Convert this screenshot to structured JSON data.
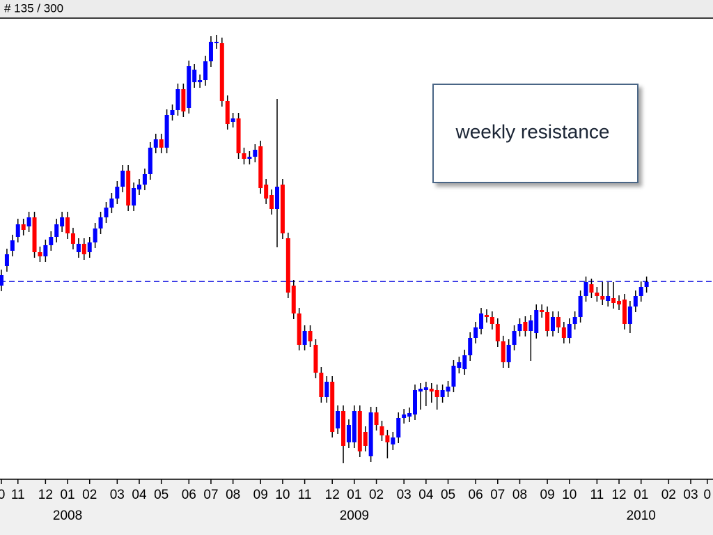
{
  "chart_data": {
    "type": "candlestick",
    "title": "# 135 / 300",
    "annotation": "weekly resistance",
    "up_color": "#0000ff",
    "down_color": "#ff0000",
    "wick_color": "#000000",
    "resistance": 284,
    "resistance_color": "#0000dd",
    "xlim": [
      0,
      129
    ],
    "ylim": [
      0,
      663
    ],
    "xticks": [
      {
        "value": 0,
        "label": "0"
      },
      {
        "value": 3,
        "label": "11"
      },
      {
        "value": 8,
        "label": "12"
      },
      {
        "value": 12,
        "label": "01"
      },
      {
        "value": 16,
        "label": "02"
      },
      {
        "value": 21,
        "label": "03"
      },
      {
        "value": 25,
        "label": "04"
      },
      {
        "value": 29,
        "label": "05"
      },
      {
        "value": 34,
        "label": "06"
      },
      {
        "value": 38,
        "label": "07"
      },
      {
        "value": 42,
        "label": "08"
      },
      {
        "value": 47,
        "label": "09"
      },
      {
        "value": 51,
        "label": "10"
      },
      {
        "value": 55,
        "label": "11"
      },
      {
        "value": 60,
        "label": "12"
      },
      {
        "value": 64,
        "label": "01"
      },
      {
        "value": 68,
        "label": "02"
      },
      {
        "value": 73,
        "label": "03"
      },
      {
        "value": 77,
        "label": "04"
      },
      {
        "value": 81,
        "label": "05"
      },
      {
        "value": 86,
        "label": "06"
      },
      {
        "value": 90,
        "label": "07"
      },
      {
        "value": 94,
        "label": "08"
      },
      {
        "value": 99,
        "label": "09"
      },
      {
        "value": 103,
        "label": "10"
      },
      {
        "value": 108,
        "label": "11"
      },
      {
        "value": 112,
        "label": "12"
      },
      {
        "value": 116,
        "label": "01"
      },
      {
        "value": 121,
        "label": "02"
      },
      {
        "value": 125,
        "label": "03"
      },
      {
        "value": 128,
        "label": "0"
      }
    ],
    "year_ticks": [
      {
        "value": 12,
        "label": "2008"
      },
      {
        "value": 64,
        "label": "2009"
      },
      {
        "value": 116,
        "label": "2010"
      }
    ],
    "open": [
      278,
      306,
      328,
      348,
      366,
      363,
      376,
      326,
      320,
      336,
      348,
      363,
      376,
      353,
      326,
      338,
      326,
      340,
      360,
      376,
      390,
      403,
      420,
      443,
      393,
      416,
      423,
      438,
      476,
      488,
      476,
      523,
      530,
      560,
      533,
      570,
      570,
      573,
      600,
      626,
      626,
      543,
      513,
      518,
      468,
      460,
      463,
      478,
      423,
      408,
      388,
      423,
      346,
      278,
      238,
      193,
      213,
      193,
      153,
      118,
      140,
      73,
      98,
      53,
      53,
      98,
      68,
      33,
      96,
      76,
      63,
      50,
      60,
      88,
      90,
      93,
      126,
      128,
      130,
      128,
      118,
      126,
      133,
      160,
      158,
      178,
      203,
      216,
      236,
      233,
      223,
      198,
      168,
      193,
      213,
      226,
      213,
      210,
      243,
      240,
      213,
      233,
      218,
      203,
      223,
      233,
      263,
      280,
      268,
      263,
      256,
      260,
      256,
      258,
      223,
      248,
      263,
      276
    ],
    "high": [
      301,
      331,
      351,
      374,
      374,
      384,
      384,
      334,
      344,
      356,
      374,
      384,
      384,
      361,
      346,
      346,
      348,
      368,
      384,
      398,
      411,
      428,
      451,
      451,
      426,
      431,
      446,
      484,
      496,
      496,
      531,
      538,
      568,
      568,
      601,
      596,
      581,
      608,
      636,
      638,
      634,
      551,
      526,
      526,
      476,
      471,
      481,
      486,
      431,
      416,
      546,
      431,
      354,
      286,
      246,
      221,
      221,
      201,
      161,
      148,
      148,
      106,
      106,
      86,
      106,
      106,
      76,
      104,
      104,
      84,
      71,
      68,
      96,
      101,
      103,
      136,
      138,
      140,
      138,
      136,
      136,
      141,
      171,
      176,
      186,
      211,
      226,
      246,
      244,
      241,
      231,
      206,
      201,
      221,
      231,
      234,
      236,
      251,
      251,
      248,
      241,
      241,
      226,
      231,
      241,
      271,
      291,
      288,
      276,
      283,
      283,
      283,
      264,
      266,
      256,
      271,
      284,
      291
    ],
    "low": [
      270,
      298,
      320,
      340,
      350,
      355,
      318,
      312,
      312,
      328,
      340,
      355,
      345,
      330,
      318,
      315,
      318,
      332,
      352,
      368,
      382,
      395,
      412,
      385,
      385,
      408,
      415,
      430,
      468,
      468,
      468,
      515,
      522,
      520,
      525,
      562,
      562,
      565,
      592,
      618,
      535,
      502,
      505,
      460,
      452,
      452,
      455,
      410,
      395,
      380,
      333,
      345,
      260,
      230,
      185,
      185,
      190,
      145,
      110,
      110,
      60,
      65,
      23,
      45,
      45,
      32,
      40,
      25,
      70,
      55,
      30,
      42,
      52,
      80,
      82,
      85,
      100,
      105,
      110,
      100,
      110,
      118,
      125,
      152,
      150,
      170,
      195,
      208,
      225,
      215,
      190,
      160,
      160,
      185,
      205,
      205,
      170,
      202,
      232,
      205,
      205,
      210,
      195,
      195,
      215,
      225,
      255,
      260,
      255,
      250,
      248,
      245,
      243,
      215,
      210,
      240,
      255,
      268
    ],
    "close": [
      293,
      323,
      343,
      366,
      358,
      376,
      326,
      320,
      336,
      348,
      366,
      376,
      353,
      338,
      338,
      323,
      340,
      360,
      376,
      390,
      403,
      420,
      443,
      393,
      418,
      423,
      438,
      476,
      488,
      476,
      523,
      530,
      560,
      528,
      593,
      588,
      573,
      600,
      628,
      628,
      543,
      510,
      518,
      468,
      460,
      463,
      473,
      418,
      403,
      388,
      420,
      353,
      268,
      238,
      193,
      213,
      198,
      153,
      118,
      140,
      68,
      98,
      48,
      78,
      98,
      40,
      48,
      96,
      78,
      63,
      53,
      60,
      88,
      93,
      95,
      128,
      130,
      132,
      126,
      118,
      128,
      133,
      163,
      168,
      178,
      203,
      218,
      238,
      233,
      223,
      198,
      168,
      193,
      213,
      223,
      213,
      228,
      243,
      240,
      213,
      233,
      218,
      203,
      223,
      233,
      263,
      283,
      268,
      263,
      258,
      263,
      253,
      251,
      223,
      248,
      263,
      276,
      283
    ]
  }
}
